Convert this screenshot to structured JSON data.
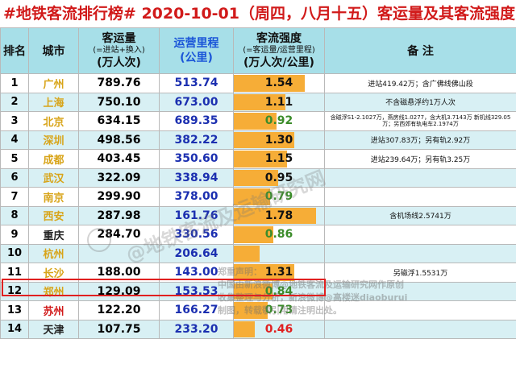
{
  "title": "#地铁客流排行榜# 2020-10-01（周四，八月十五）客运量及其客流强度",
  "headers": {
    "rank": "排名",
    "city": "城市",
    "volume_main": "客运量",
    "volume_sub": "(=进站+换入)",
    "volume_unit": "(万人次)",
    "km_main": "运营里程",
    "km_unit": "(公里)",
    "intensity_main": "客流强度",
    "intensity_sub": "(=客运量/运营里程)",
    "intensity_unit": "(万人次/公里)",
    "note": "备 注"
  },
  "rows": [
    {
      "rank": "1",
      "city": "广州",
      "city_color": "#d8a418",
      "volume": "789.76",
      "km": "513.74",
      "intensity": "1.54",
      "intensity_value": 1.54,
      "intensity_color": "black",
      "note": "进站419.42万；含广佛线佛山段"
    },
    {
      "rank": "2",
      "city": "上海",
      "city_color": "#d8a418",
      "volume": "750.10",
      "km": "673.00",
      "intensity": "1.11",
      "intensity_value": 1.11,
      "intensity_color": "black",
      "note": "不含磁悬浮约1万人次"
    },
    {
      "rank": "3",
      "city": "北京",
      "city_color": "#d8a418",
      "volume": "634.15",
      "km": "689.35",
      "intensity": "0.92",
      "intensity_value": 0.92,
      "intensity_color": "green",
      "note": "含磁浮S1-2.1027万，燕房线1.0277，含大机3.7143万 新机线329.05万；另西郊有轨电车2.1974万"
    },
    {
      "rank": "4",
      "city": "深圳",
      "city_color": "#d8a418",
      "volume": "498.56",
      "km": "382.22",
      "intensity": "1.30",
      "intensity_value": 1.3,
      "intensity_color": "black",
      "note": "进站307.83万；另有轨2.92万"
    },
    {
      "rank": "5",
      "city": "成都",
      "city_color": "#d8a418",
      "volume": "403.45",
      "km": "350.60",
      "intensity": "1.15",
      "intensity_value": 1.15,
      "intensity_color": "black",
      "note": "进站239.64万；另有轨3.25万"
    },
    {
      "rank": "6",
      "city": "武汉",
      "city_color": "#d8a418",
      "volume": "322.09",
      "km": "338.94",
      "intensity": "0.95",
      "intensity_value": 0.95,
      "intensity_color": "black",
      "note": ""
    },
    {
      "rank": "7",
      "city": "南京",
      "city_color": "#d8a418",
      "volume": "299.90",
      "km": "378.00",
      "intensity": "0.79",
      "intensity_value": 0.79,
      "intensity_color": "green",
      "note": ""
    },
    {
      "rank": "8",
      "city": "西安",
      "city_color": "#d8a418",
      "volume": "287.98",
      "km": "161.76",
      "intensity": "1.78",
      "intensity_value": 1.78,
      "intensity_color": "black",
      "note": "含机场线2.5741万"
    },
    {
      "rank": "9",
      "city": "重庆",
      "city_color": "#222222",
      "volume": "284.70",
      "km": "330.56",
      "intensity": "0.86",
      "intensity_value": 0.86,
      "intensity_color": "green",
      "note": ""
    },
    {
      "rank": "10",
      "city": "杭州",
      "city_color": "#d8a418",
      "volume": "",
      "km": "206.64",
      "intensity": "",
      "intensity_value": 0.55,
      "intensity_color": "black",
      "note": ""
    },
    {
      "rank": "11",
      "city": "长沙",
      "city_color": "#d8a418",
      "volume": "188.00",
      "km": "143.00",
      "intensity": "1.31",
      "intensity_value": 1.31,
      "intensity_color": "black",
      "note": "另磁浮1.5531万"
    },
    {
      "rank": "12",
      "city": "郑州",
      "city_color": "#d8a418",
      "volume": "129.09",
      "km": "153.53",
      "intensity": "0.84",
      "intensity_value": 0.84,
      "intensity_color": "green",
      "note": ""
    },
    {
      "rank": "13",
      "city": "苏州",
      "city_color": "#d11a1a",
      "volume": "122.20",
      "km": "166.27",
      "intensity": "0.73",
      "intensity_value": 0.73,
      "intensity_color": "green",
      "note": ""
    },
    {
      "rank": "14",
      "city": "天津",
      "city_color": "#222222",
      "volume": "107.75",
      "km": "233.20",
      "intensity": "0.46",
      "intensity_value": 0.46,
      "intensity_color": "red",
      "note": ""
    }
  ],
  "watermark": {
    "main": "@地铁客流及运输研究网",
    "copyright": "郑重声明：\n中国由新浪微博@地铁客流及运输研究网作原创\n收集整理与分析，新浪微博@高楼迷diaoburui\n制图，转载敬引用请注明出处。"
  },
  "colors": {
    "header_bg": "#a7dfe8",
    "bar": "#f6ad37",
    "highlight": "#e02020",
    "title": "#d11a1a"
  }
}
